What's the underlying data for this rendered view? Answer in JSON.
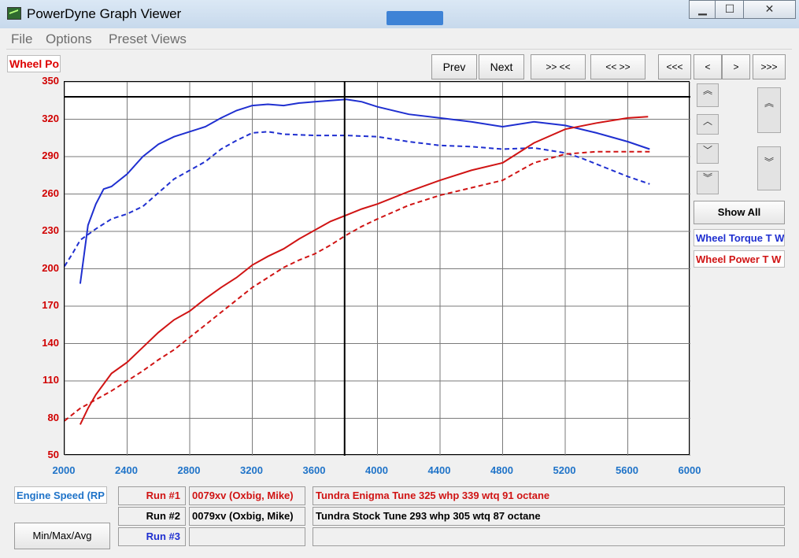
{
  "window": {
    "title": "PowerDyne Graph Viewer",
    "controls": {
      "minimize": "▁",
      "maximize": "☐",
      "close": "✕"
    }
  },
  "menu": [
    "File",
    "Options",
    "Preset Views"
  ],
  "toolbar": {
    "prev": "Prev",
    "next": "Next",
    "zoom_in": ">> <<",
    "zoom_out": "<< >>",
    "first": "<<<",
    "back": "<",
    "forward": ">",
    "last": ">>>"
  },
  "y_axis_selector": "Wheel Po",
  "x_axis_selector": "Engine Speed (RP",
  "side": {
    "up_double": "︽",
    "up": "︿",
    "down": "﹀",
    "down_double": "︾",
    "show_all": "Show All",
    "legend": [
      {
        "label": "Wheel Torque T W",
        "color": "#1f2fd0"
      },
      {
        "label": "Wheel Power T W",
        "color": "#d01414"
      }
    ]
  },
  "runs": [
    {
      "label": "Run #1",
      "vehicle": "0079xv (Oxbig, Mike)",
      "description": "Tundra Enigma Tune 325 whp 339 wtq 91 octane",
      "color": "#d01414"
    },
    {
      "label": "Run #2",
      "vehicle": "0079xv (Oxbig, Mike)",
      "description": "Tundra Stock Tune 293 whp 305 wtq 87 octane",
      "color": "#000000"
    },
    {
      "label": "Run #3",
      "vehicle": "",
      "description": "",
      "color": "#1f2fd0"
    }
  ],
  "minmax_button": "Min/Max/Avg",
  "chart_data": {
    "type": "line",
    "xlim": [
      2000,
      6000
    ],
    "ylim": [
      50,
      350
    ],
    "x_ticks": [
      "2000",
      "2400",
      "2800",
      "3200",
      "3600",
      "4000",
      "4400",
      "4800",
      "5200",
      "5600",
      "6000"
    ],
    "y_ticks": [
      "350",
      "320",
      "290",
      "260",
      "230",
      "200",
      "170",
      "140",
      "110",
      "80",
      "50"
    ],
    "cursor_x": 3790,
    "cursor_y": 338,
    "grid": true,
    "series": [
      {
        "run": "Run #1",
        "metric": "torque",
        "color": "#1f2fd0",
        "dash": false,
        "x": [
          2100,
          2150,
          2200,
          2250,
          2300,
          2400,
          2500,
          2600,
          2700,
          2800,
          2900,
          3000,
          3100,
          3200,
          3300,
          3400,
          3500,
          3600,
          3700,
          3800,
          3900,
          4000,
          4200,
          4400,
          4600,
          4800,
          5000,
          5200,
          5400,
          5600,
          5740
        ],
        "y": [
          188,
          235,
          252,
          264,
          266,
          276,
          290,
          300,
          306,
          310,
          314,
          321,
          327,
          331,
          332,
          331,
          333,
          334,
          335,
          336,
          334,
          330,
          324,
          321,
          318,
          314,
          318,
          315,
          309,
          302,
          296
        ]
      },
      {
        "run": "Run #2",
        "metric": "torque",
        "color": "#1f2fd0",
        "dash": true,
        "x": [
          2000,
          2050,
          2100,
          2200,
          2300,
          2400,
          2500,
          2600,
          2700,
          2800,
          2900,
          3000,
          3100,
          3200,
          3300,
          3400,
          3600,
          3800,
          4000,
          4200,
          4400,
          4600,
          4800,
          5000,
          5200,
          5300,
          5400,
          5500,
          5600,
          5740
        ],
        "y": [
          202,
          212,
          223,
          232,
          240,
          244,
          250,
          261,
          272,
          279,
          286,
          296,
          303,
          309,
          310,
          308,
          307,
          307,
          306,
          302,
          299,
          298,
          296,
          297,
          293,
          289,
          284,
          279,
          274,
          268
        ]
      },
      {
        "run": "Run #1",
        "metric": "power",
        "color": "#d01414",
        "dash": false,
        "x": [
          2100,
          2150,
          2200,
          2300,
          2400,
          2500,
          2600,
          2700,
          2800,
          2900,
          3000,
          3100,
          3200,
          3300,
          3400,
          3500,
          3600,
          3700,
          3800,
          3900,
          4000,
          4200,
          4400,
          4600,
          4800,
          5000,
          5200,
          5400,
          5600,
          5730
        ],
        "y": [
          75,
          88,
          99,
          116,
          125,
          137,
          149,
          159,
          166,
          176,
          185,
          193,
          203,
          210,
          216,
          224,
          231,
          238,
          243,
          248,
          252,
          262,
          271,
          279,
          285,
          301,
          312,
          317,
          321,
          322
        ]
      },
      {
        "run": "Run #2",
        "metric": "power",
        "color": "#d01414",
        "dash": true,
        "x": [
          2000,
          2100,
          2200,
          2300,
          2400,
          2500,
          2600,
          2700,
          2800,
          2900,
          3000,
          3100,
          3200,
          3300,
          3400,
          3500,
          3600,
          3700,
          3800,
          3900,
          4000,
          4200,
          4400,
          4600,
          4800,
          5000,
          5200,
          5400,
          5600,
          5740
        ],
        "y": [
          78,
          88,
          95,
          102,
          110,
          118,
          127,
          135,
          145,
          155,
          165,
          175,
          185,
          193,
          201,
          207,
          212,
          219,
          227,
          234,
          240,
          251,
          259,
          265,
          271,
          285,
          292,
          294,
          294,
          294
        ]
      }
    ]
  }
}
